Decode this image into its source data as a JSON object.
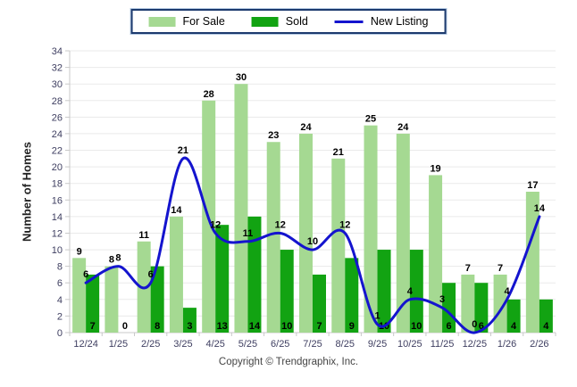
{
  "chart_data": {
    "type": "bar+line",
    "title": "",
    "xlabel": "",
    "ylabel": "Number of Homes",
    "ylim": [
      0,
      34
    ],
    "ytick_step": 2,
    "grid": true,
    "legend_position": "top-center",
    "categories": [
      "12/24",
      "1/25",
      "2/25",
      "3/25",
      "4/25",
      "5/25",
      "6/25",
      "7/25",
      "8/25",
      "9/25",
      "10/25",
      "11/25",
      "12/25",
      "1/26",
      "2/26"
    ],
    "series": [
      {
        "name": "For Sale",
        "type": "bar",
        "color": "#a5d992",
        "label_position": "above-bar",
        "values": [
          9,
          8,
          11,
          14,
          28,
          30,
          23,
          24,
          21,
          25,
          24,
          19,
          7,
          7,
          17
        ]
      },
      {
        "name": "Sold",
        "type": "bar",
        "color": "#12a312",
        "label_position": "bar-bottom",
        "values": [
          7,
          0,
          8,
          3,
          13,
          14,
          10,
          7,
          9,
          10,
          10,
          6,
          6,
          4,
          4
        ]
      },
      {
        "name": "New Listing",
        "type": "line",
        "color": "#1414ce",
        "label_position": "above-point",
        "values": [
          6,
          8,
          6,
          21,
          12,
          11,
          12,
          10,
          12,
          1,
          4,
          3,
          0,
          4,
          14
        ]
      }
    ],
    "colors": {
      "grid_line": "#eaeaea",
      "axis_line": "#c9c9c9",
      "tick_label": "#3e3e60",
      "value_label": "#000000",
      "background": "#ffffff"
    }
  },
  "footer": {
    "copyright": "Copyright © Trendgraphix, Inc."
  }
}
